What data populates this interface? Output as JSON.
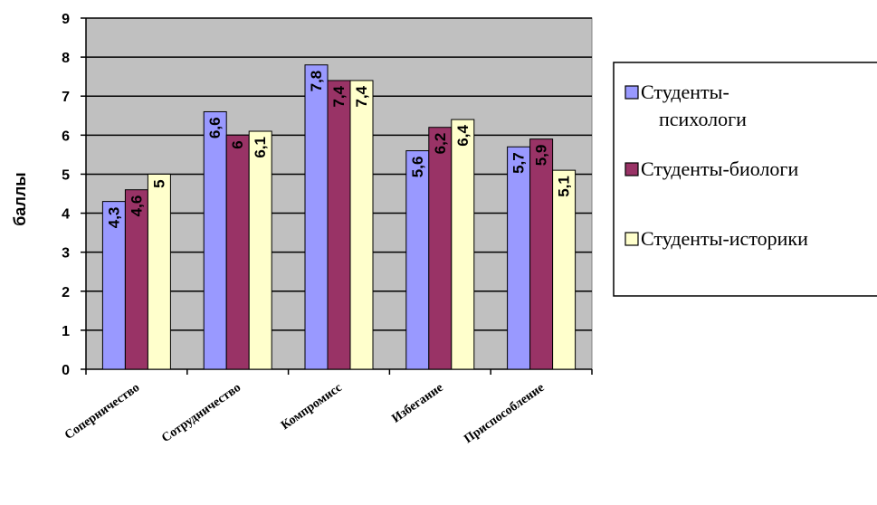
{
  "chart_data": {
    "type": "bar",
    "categories": [
      "Соперничество",
      "Сотрудничество",
      "Компромисс",
      "Избегание",
      "Приспособление"
    ],
    "series": [
      {
        "name": "Студенты-психологи",
        "values": [
          4.3,
          6.6,
          7.8,
          5.6,
          5.7
        ],
        "labels": [
          "4,3",
          "6,6",
          "7,8",
          "5,6",
          "5,7"
        ],
        "color": "#9999ff"
      },
      {
        "name": "Студенты-биологи",
        "values": [
          4.6,
          6.0,
          7.4,
          6.2,
          5.9
        ],
        "labels": [
          "4,6",
          "6",
          "7,4",
          "6,2",
          "5,9"
        ],
        "color": "#993366"
      },
      {
        "name": "Студенты-историки",
        "values": [
          5.0,
          6.1,
          7.4,
          6.4,
          5.1
        ],
        "labels": [
          "5",
          "6,1",
          "7,4",
          "6,4",
          "5,1"
        ],
        "color": "#ffffcc"
      }
    ],
    "ylabel": "баллы",
    "ylim": [
      0,
      9
    ],
    "yticks": [
      "0",
      "1",
      "2",
      "3",
      "4",
      "5",
      "6",
      "7",
      "8",
      "9"
    ],
    "grid": true,
    "plot_background": "#c0c0c0",
    "legend_lines": [
      [
        "Студенты-",
        "психологи"
      ],
      [
        "Студенты-биологи"
      ],
      [
        "Студенты-историки"
      ]
    ],
    "legend_position": "right"
  }
}
